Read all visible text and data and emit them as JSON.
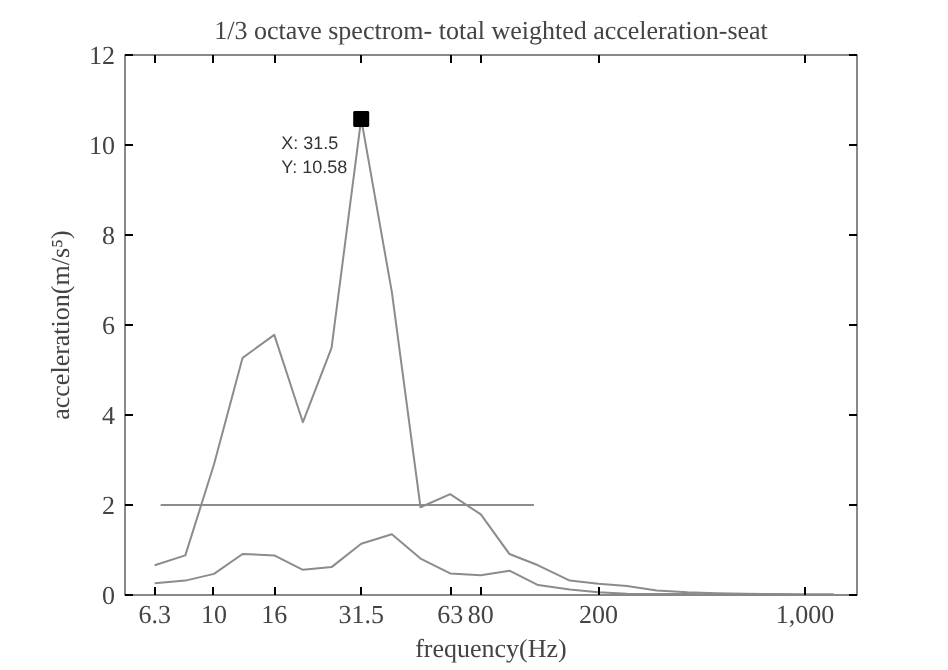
{
  "chart_data": {
    "type": "line",
    "title": "1/3 octave spectrom- total weighted acceleration-seat",
    "xlabel": "frequency(Hz)",
    "ylabel": "acceleration(m/s⁵)",
    "log": "x",
    "xlim": [
      5,
      1500
    ],
    "ylim": [
      0,
      12
    ],
    "xticks": [
      6.3,
      10,
      16,
      31.5,
      63,
      80,
      200,
      {
        "value": 1000,
        "label": "1,000"
      }
    ],
    "yticks": [
      0,
      2,
      4,
      6,
      8,
      10,
      12
    ],
    "grid": false,
    "series": [
      {
        "color": "#8c8c8c",
        "x": [
          6.3,
          8,
          10,
          12.5,
          16,
          20,
          25,
          31.5,
          40,
          50,
          63,
          80,
          100,
          125,
          160,
          200,
          250,
          315,
          400,
          500,
          630,
          800,
          1000,
          1250
        ],
        "values": [
          0.66,
          0.88,
          2.9,
          5.27,
          5.78,
          3.84,
          5.49,
          10.58,
          6.73,
          1.95,
          2.24,
          1.79,
          0.91,
          0.66,
          0.32,
          0.25,
          0.2,
          0.1,
          0.06,
          0.04,
          0.03,
          0.02,
          0.01,
          0.01
        ]
      },
      {
        "color": "#8c8c8c",
        "x": [
          6.3,
          8,
          10,
          12.5,
          16,
          20,
          25,
          31.5,
          40,
          50,
          63,
          80,
          100,
          125,
          160,
          200,
          250,
          315,
          400,
          500,
          630,
          800,
          1000,
          1250
        ],
        "values": [
          0.26,
          0.32,
          0.47,
          0.91,
          0.88,
          0.56,
          0.62,
          1.14,
          1.35,
          0.81,
          0.48,
          0.44,
          0.54,
          0.22,
          0.12,
          0.06,
          0.03,
          0.02,
          0.02,
          0.01,
          0.01,
          0.01,
          0.01,
          0.01
        ]
      },
      {
        "color": "#8c8c8c",
        "x": [
          6.6,
          121
        ],
        "values": [
          2,
          2
        ]
      }
    ],
    "annotations": [
      {
        "text": "X: 31.5\nY: 10.58",
        "x": 31.5,
        "y": 10.58
      }
    ]
  }
}
